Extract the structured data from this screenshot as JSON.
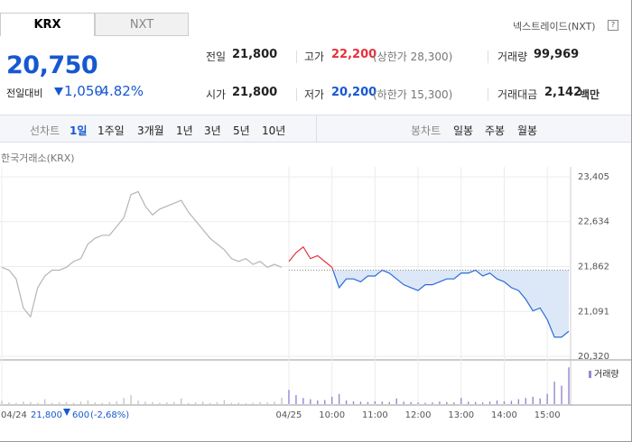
{
  "tabs": [
    "KRX",
    "NXT"
  ],
  "nxt_link": "넥스트레이드(NXT)",
  "help": "?",
  "price": "20,750",
  "change_label": "전일대비",
  "change": "1,050",
  "change_pct": "-4.82%",
  "stats": [
    [
      {
        "label": "전일",
        "value": "21,800"
      },
      {
        "label": "고가",
        "value": "22,200",
        "note": "(상한가 28,300)"
      },
      {
        "label": "거래량",
        "value": "99,969"
      }
    ],
    [
      {
        "label": "시가",
        "value": "21,800"
      },
      {
        "label": "저가",
        "value": "20,200",
        "note": "(하한가 15,300)"
      },
      {
        "label": "거래대금",
        "value": "2,142",
        "unit": "백만"
      }
    ]
  ],
  "line_chart": {
    "label": "선차트",
    "items": [
      "1일",
      "1주일",
      "3개월",
      "1년",
      "3년",
      "5년",
      "10년"
    ]
  },
  "candle_chart": {
    "label": "봉차트",
    "items": [
      "일봉",
      "주봉",
      "월봉"
    ]
  },
  "prev_day": {
    "close": "21,800",
    "change": "600",
    "change_pct": "(-2,68%)"
  },
  "chart_data": {
    "type": "line",
    "source": "한국거래소(KRX)",
    "xlim": [
      0,
      79
    ],
    "xticks": [
      {
        "value": 0,
        "label": "04/24"
      },
      {
        "value": 40,
        "label": "04/25"
      },
      {
        "value": 46,
        "label": "10:00"
      },
      {
        "value": 52,
        "label": "11:00"
      },
      {
        "value": 58,
        "label": "12:00"
      },
      {
        "value": 64,
        "label": "13:00"
      },
      {
        "value": 70,
        "label": "14:00"
      },
      {
        "value": 76,
        "label": "15:00"
      }
    ],
    "ylim": [
      20320,
      23405
    ],
    "yticks": [
      {
        "value": 23405,
        "label": "23,405"
      },
      {
        "value": 22634,
        "label": "22,634"
      },
      {
        "value": 21862,
        "label": "21,862"
      },
      {
        "value": 21091,
        "label": "21,091"
      },
      {
        "value": 20320,
        "label": "20,320"
      }
    ],
    "baseline": 21800,
    "series": [
      {
        "color": "#b5b5b5",
        "values": [
          21850,
          21800,
          21650,
          21150,
          21000,
          21500,
          21700,
          21800,
          21800,
          21850,
          21950,
          22000,
          22250,
          22350,
          22400,
          22400,
          22550,
          22700,
          23100,
          23150,
          22900,
          22750,
          22850,
          22900,
          22950,
          23000,
          22800,
          22650,
          22500,
          22350,
          22250,
          22150,
          22000,
          21950,
          22000,
          21900,
          21950,
          21850,
          21900,
          21850,
          null,
          null,
          null,
          null,
          null,
          null,
          null,
          null,
          null,
          null,
          null,
          null,
          null,
          null,
          null,
          null,
          null,
          null,
          null,
          null,
          null,
          null,
          null,
          null,
          null,
          null,
          null,
          null,
          null,
          null,
          null,
          null,
          null,
          null,
          null,
          null,
          null,
          null,
          null,
          null
        ]
      },
      {
        "color": "#e8303a",
        "below_color": "#2a6bd6",
        "fill_color": "#dce8f8",
        "values": [
          null,
          null,
          null,
          null,
          null,
          null,
          null,
          null,
          null,
          null,
          null,
          null,
          null,
          null,
          null,
          null,
          null,
          null,
          null,
          null,
          null,
          null,
          null,
          null,
          null,
          null,
          null,
          null,
          null,
          null,
          null,
          null,
          null,
          null,
          null,
          null,
          null,
          null,
          null,
          null,
          21950,
          22100,
          22200,
          22000,
          22050,
          21950,
          21850,
          21500,
          21650,
          21650,
          21600,
          21700,
          21700,
          21800,
          21750,
          21650,
          21550,
          21500,
          21450,
          21550,
          21550,
          21600,
          21650,
          21650,
          21750,
          21750,
          21800,
          21700,
          21750,
          21650,
          21600,
          21500,
          21450,
          21300,
          21100,
          21150,
          20950,
          20650,
          20650,
          20750
        ]
      }
    ],
    "volume": {
      "name": "거래량",
      "color": "#9a86d0",
      "prev_color": "#c6c6c6",
      "ylim": [
        0,
        9500
      ],
      "values": [
        800,
        400,
        300,
        600,
        500,
        300,
        1200,
        300,
        400,
        500,
        300,
        600,
        900,
        400,
        300,
        500,
        700,
        1500,
        2200,
        900,
        600,
        500,
        300,
        400,
        500,
        1400,
        300,
        400,
        600,
        300,
        500,
        1000,
        300,
        400,
        200,
        300,
        500,
        400,
        600,
        1600,
        3500,
        2200,
        1500,
        1200,
        900,
        1000,
        1800,
        2500,
        900,
        700,
        600,
        500,
        700,
        600,
        500,
        1400,
        600,
        500,
        400,
        300,
        400,
        600,
        500,
        400,
        1500,
        600,
        500,
        400,
        600,
        900,
        700,
        800,
        1200,
        1500,
        1800,
        1400,
        2500,
        5500,
        4500,
        9000
      ]
    }
  }
}
